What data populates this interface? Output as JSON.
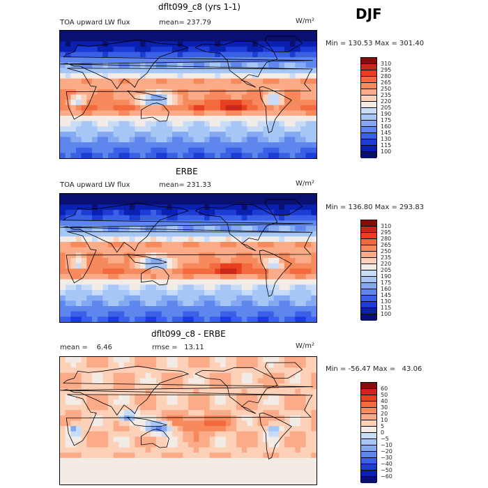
{
  "season": "DJF",
  "chart_data": [
    {
      "type": "heatmap",
      "title": "dflt099_c8 (yrs 1-1)",
      "variable": "TOA upward LW flux",
      "mean_text": "mean= 237.79",
      "units": "W/m²",
      "minmax_text": "Min = 130.53 Max = 301.40",
      "min": 130.53,
      "max": 301.4,
      "mean": 237.79,
      "levels": [
        "310",
        "295",
        "280",
        "265",
        "250",
        "235",
        "220",
        "205",
        "190",
        "175",
        "160",
        "145",
        "130",
        "115",
        "100"
      ],
      "colors": [
        "#8b0a0a",
        "#c8281a",
        "#e8401e",
        "#f26a3e",
        "#f78a5c",
        "#fbab88",
        "#fdd0b8",
        "#f3ece6",
        "#c9dcf7",
        "#a6c6f5",
        "#84a9f0",
        "#5e86ec",
        "#3a60e8",
        "#1d3cd6",
        "#0a20b0",
        "#0a1070"
      ],
      "pattern": "olr"
    },
    {
      "type": "heatmap",
      "title": "ERBE",
      "variable": "TOA upward LW flux",
      "mean_text": "mean= 231.33",
      "units": "W/m²",
      "minmax_text": "Min = 136.80 Max = 293.83",
      "min": 136.8,
      "max": 293.83,
      "mean": 231.33,
      "levels": [
        "310",
        "295",
        "280",
        "265",
        "250",
        "235",
        "220",
        "205",
        "190",
        "175",
        "160",
        "145",
        "130",
        "115",
        "100"
      ],
      "colors": [
        "#8b0a0a",
        "#c8281a",
        "#e8401e",
        "#f26a3e",
        "#f78a5c",
        "#fbab88",
        "#fdd0b8",
        "#f3ece6",
        "#c9dcf7",
        "#a6c6f5",
        "#84a9f0",
        "#5e86ec",
        "#3a60e8",
        "#1d3cd6",
        "#0a20b0",
        "#0a1070"
      ],
      "pattern": "olr"
    },
    {
      "type": "heatmap",
      "title": "dflt099_c8 - ERBE",
      "mean_text": "mean =    6.46",
      "rmse_text": "rmse =   13.11",
      "units": "W/m²",
      "minmax_text": "Min = -56.47 Max =   43.06",
      "min": -56.47,
      "max": 43.06,
      "mean": 6.46,
      "rmse": 13.11,
      "levels": [
        "60",
        "50",
        "40",
        "30",
        "20",
        "10",
        "5",
        "0",
        "−5",
        "−10",
        "−20",
        "−30",
        "−40",
        "−50",
        "−60"
      ],
      "colors": [
        "#8b0a0a",
        "#c8281a",
        "#e8401e",
        "#f26a3e",
        "#f78a5c",
        "#fbab88",
        "#fdd0b8",
        "#f3ece6",
        "#c9dcf7",
        "#a6c6f5",
        "#84a9f0",
        "#5e86ec",
        "#3a60e8",
        "#1d3cd6",
        "#0a20b0",
        "#0a1070"
      ],
      "pattern": "diff"
    }
  ]
}
